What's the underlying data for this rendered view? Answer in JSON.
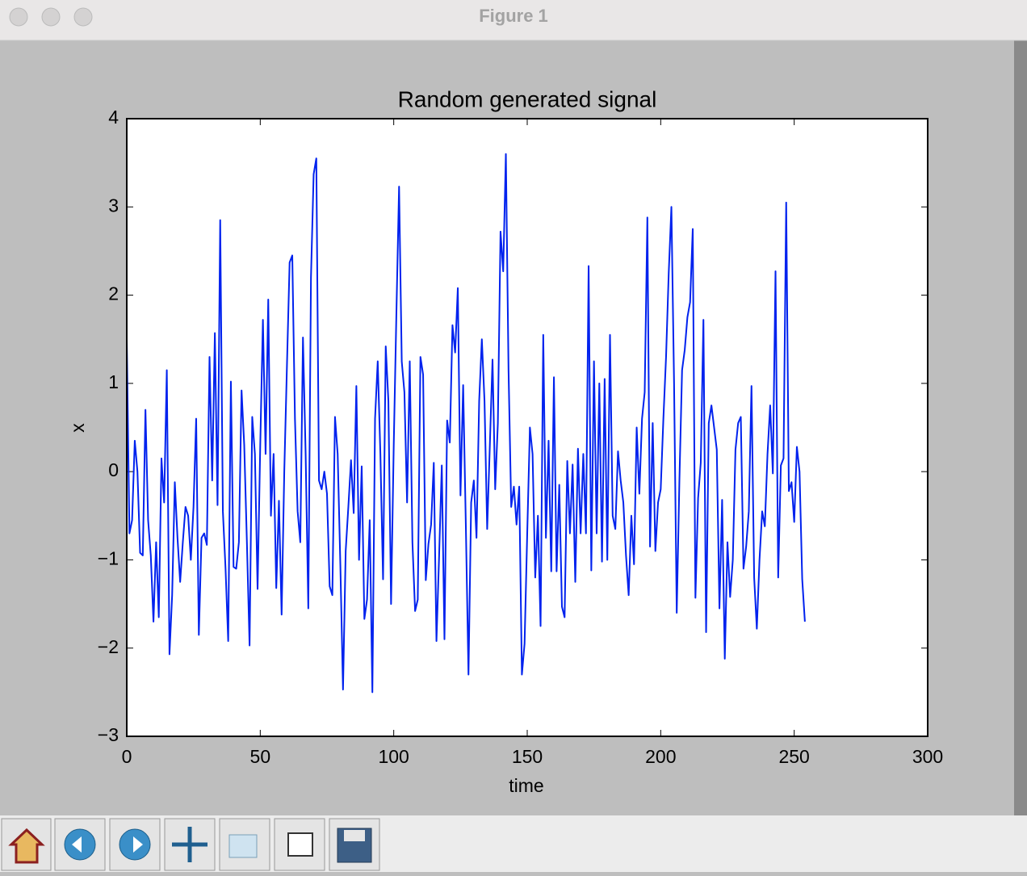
{
  "window": {
    "title": "Figure 1"
  },
  "chart_data": {
    "type": "line",
    "title": "Random generated signal",
    "xlabel": "time",
    "ylabel": "x",
    "color": "#0022ee",
    "x": [
      0,
      1,
      2,
      3,
      4,
      5,
      6,
      7,
      8,
      9,
      10,
      11,
      12,
      13,
      14,
      15,
      16,
      17,
      18,
      19,
      20,
      21,
      22,
      23,
      24,
      25,
      26,
      27,
      28,
      29,
      30,
      31,
      32,
      33,
      34,
      35,
      36,
      37,
      38,
      39,
      40,
      41,
      42,
      43,
      44,
      45,
      46,
      47,
      48,
      49,
      50,
      51,
      52,
      53,
      54,
      55,
      56,
      57,
      58,
      59,
      60,
      61,
      62,
      63,
      64,
      65,
      66,
      67,
      68,
      69,
      70,
      71,
      72,
      73,
      74,
      75,
      76,
      77,
      78,
      79,
      80,
      81,
      82,
      83,
      84,
      85,
      86,
      87,
      88,
      89,
      90,
      91,
      92,
      93,
      94,
      95,
      96,
      97,
      98,
      99,
      100,
      101,
      102,
      103,
      104,
      105,
      106,
      107,
      108,
      109,
      110,
      111,
      112,
      113,
      114,
      115,
      116,
      117,
      118,
      119,
      120,
      121,
      122,
      123,
      124,
      125,
      126,
      127,
      128,
      129,
      130,
      131,
      132,
      133,
      134,
      135,
      136,
      137,
      138,
      139,
      140,
      141,
      142,
      143,
      144,
      145,
      146,
      147,
      148,
      149,
      150,
      151,
      152,
      153,
      154,
      155,
      156,
      157,
      158,
      159,
      160,
      161,
      162,
      163,
      164,
      165,
      166,
      167,
      168,
      169,
      170,
      171,
      172,
      173,
      174,
      175,
      176,
      177,
      178,
      179,
      180,
      181,
      182,
      183,
      184,
      185,
      186,
      187,
      188,
      189,
      190,
      191,
      192,
      193,
      194,
      195,
      196,
      197,
      198,
      199,
      200,
      201,
      202,
      203,
      204,
      205,
      206,
      207,
      208,
      209,
      210,
      211,
      212,
      213,
      214,
      215,
      216,
      217,
      218,
      219,
      220,
      221,
      222,
      223,
      224,
      225,
      226,
      227,
      228,
      229,
      230,
      231,
      232,
      233,
      234,
      235,
      236,
      237,
      238,
      239,
      240,
      241,
      242,
      243,
      244,
      245,
      246,
      247,
      248,
      249,
      250,
      251,
      252,
      253,
      254
    ],
    "values": [
      1.5,
      -0.7,
      -0.55,
      0.35,
      0.0,
      -0.92,
      -0.95,
      0.7,
      -0.55,
      -0.95,
      -1.7,
      -0.8,
      -1.65,
      0.15,
      -0.35,
      1.15,
      -2.07,
      -1.4,
      -0.12,
      -0.75,
      -1.25,
      -0.8,
      -0.4,
      -0.5,
      -1.0,
      -0.4,
      0.6,
      -1.85,
      -0.75,
      -0.7,
      -0.83,
      1.3,
      -0.1,
      1.57,
      -0.38,
      2.85,
      -0.45,
      -1.1,
      -1.92,
      1.02,
      -1.08,
      -1.1,
      -0.8,
      0.92,
      0.3,
      -0.8,
      -1.97,
      0.62,
      0.2,
      -1.33,
      0.3,
      1.72,
      0.2,
      1.95,
      -0.5,
      0.2,
      -1.32,
      -0.33,
      -1.62,
      0.0,
      1.2,
      2.37,
      2.45,
      0.6,
      -0.45,
      -0.8,
      1.52,
      0.2,
      -1.55,
      2.2,
      3.37,
      3.55,
      -0.1,
      -0.2,
      0.0,
      -0.25,
      -1.3,
      -1.4,
      0.62,
      0.2,
      -1.05,
      -2.47,
      -0.9,
      -0.4,
      0.13,
      -0.47,
      0.97,
      -1.0,
      0.06,
      -1.67,
      -1.45,
      -0.55,
      -2.5,
      0.6,
      1.25,
      0.2,
      -1.22,
      1.42,
      0.8,
      -1.5,
      0.3,
      1.8,
      3.23,
      1.25,
      0.9,
      -0.35,
      1.25,
      -0.8,
      -1.58,
      -1.45,
      1.3,
      1.1,
      -1.23,
      -0.82,
      -0.6,
      0.1,
      -1.92,
      -0.95,
      0.07,
      -1.9,
      0.58,
      0.33,
      1.66,
      1.35,
      2.08,
      -0.27,
      0.98,
      -0.6,
      -2.3,
      -0.35,
      -0.1,
      -0.75,
      0.8,
      1.5,
      0.8,
      -0.65,
      0.3,
      1.27,
      -0.2,
      0.55,
      2.72,
      2.27,
      3.6,
      1.15,
      -0.4,
      -0.17,
      -0.6,
      -0.17,
      -2.3,
      -1.95,
      -0.7,
      0.5,
      0.2,
      -1.2,
      -0.5,
      -1.75,
      1.55,
      -0.75,
      0.35,
      -1.13,
      1.07,
      -1.13,
      -0.15,
      -1.53,
      -1.65,
      0.12,
      -0.7,
      0.08,
      -1.25,
      0.26,
      -0.7,
      0.2,
      -0.7,
      2.33,
      -1.12,
      1.25,
      -0.7,
      1.0,
      -1.02,
      1.05,
      -1.0,
      1.55,
      -0.5,
      -0.65,
      0.23,
      -0.1,
      -0.35,
      -0.95,
      -1.4,
      -0.5,
      -1.05,
      0.5,
      -0.25,
      0.6,
      0.9,
      2.88,
      -0.85,
      0.55,
      -0.9,
      -0.35,
      -0.2,
      0.6,
      1.3,
      2.25,
      3.0,
      1.0,
      -1.6,
      -0.1,
      1.15,
      1.38,
      1.75,
      1.92,
      2.75,
      -1.43,
      -0.3,
      0.1,
      1.72,
      -1.82,
      0.55,
      0.75,
      0.5,
      0.25,
      -1.55,
      -0.32,
      -2.12,
      -0.8,
      -1.42,
      -1.0,
      0.25,
      0.55,
      0.62,
      -1.1,
      -0.85,
      -0.45,
      0.97,
      -1.2,
      -1.78,
      -1.0,
      -0.45,
      -0.62,
      0.2,
      0.75,
      -0.02,
      2.27,
      -1.2,
      0.07,
      0.15,
      3.05,
      -0.22,
      -0.12,
      -0.57,
      0.28,
      0.0,
      -1.22,
      -1.7
    ],
    "xlim": [
      0,
      300
    ],
    "xticks": [
      0,
      50,
      100,
      150,
      200,
      250,
      300
    ],
    "ylim": [
      -3,
      4
    ],
    "yticks": [
      {
        "value": -3,
        "label": "−3"
      },
      {
        "value": -2,
        "label": "−2"
      },
      {
        "value": -1,
        "label": "−1"
      },
      0,
      1,
      2,
      3,
      4
    ]
  }
}
